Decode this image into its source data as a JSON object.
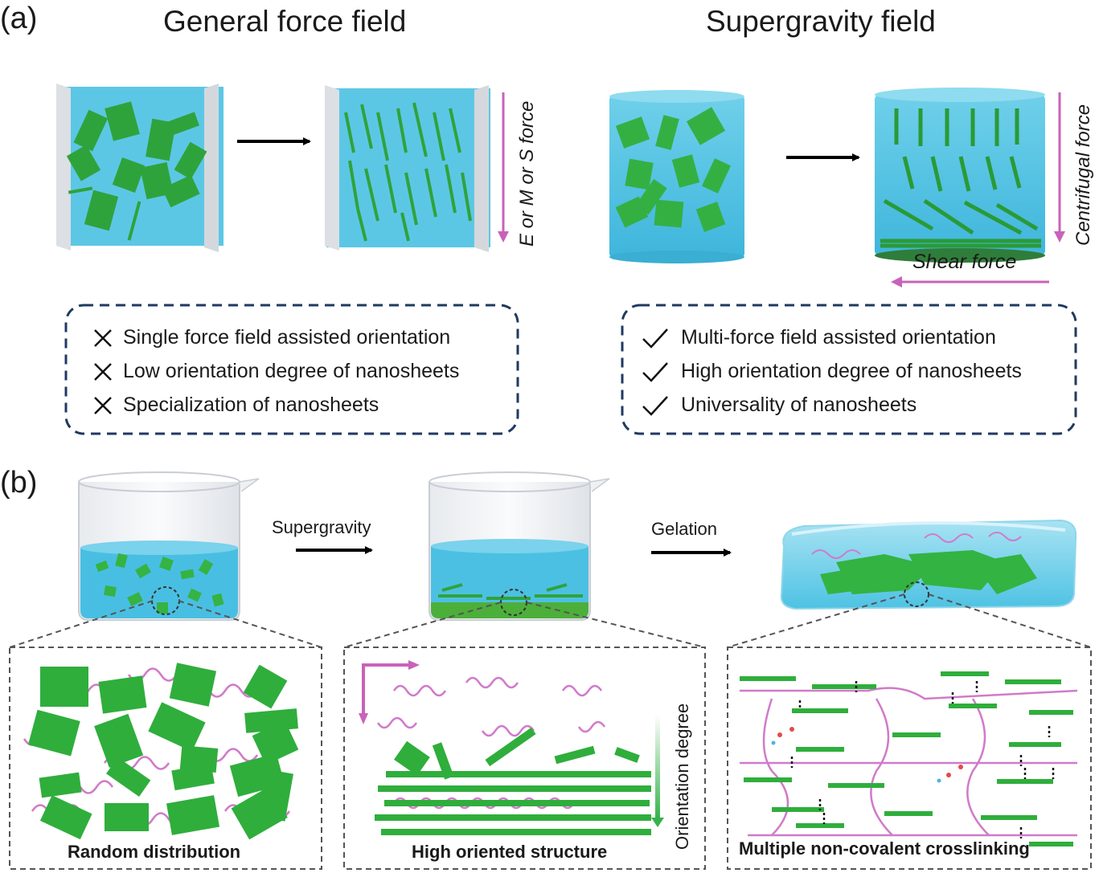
{
  "panel_a": {
    "label": "(a)",
    "left_title": "General force field",
    "right_title": "Supergravity field",
    "left_force_label": "E or M or S force",
    "centrifugal_label": "Centrifugal force",
    "shear_label": "Shear force",
    "cons": [
      "Single force field assisted orientation",
      "Low orientation degree of nanosheets",
      "Specialization of nanosheets"
    ],
    "pros": [
      "Multi-force field assisted orientation",
      "High orientation degree of nanosheets",
      "Universality of nanosheets"
    ]
  },
  "panel_b": {
    "label": "(b)",
    "step1_label": "Supergravity",
    "step2_label": "Gelation",
    "orientation_label": "Orientation degree",
    "captions": [
      "Random distribution",
      "High oriented structure",
      "Multiple non-covalent crosslinking"
    ]
  },
  "colors": {
    "water": "#5bc8e6",
    "sheet": "#2fae3c",
    "polymer": "#d07bc9",
    "arrow_pink": "#c962b9",
    "dash_box": "#1f3a5f"
  }
}
